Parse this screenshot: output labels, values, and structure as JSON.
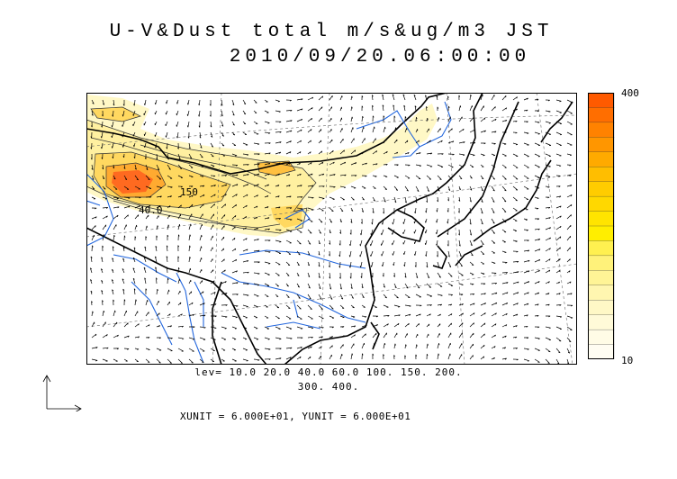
{
  "title": {
    "line1": "U-V&Dust total m/s&ug/m3 JST",
    "line2": "2010/09/20.06:00:00"
  },
  "contour_labels": [
    "150",
    "40.0"
  ],
  "colorbar": {
    "max_label": "400",
    "min_label": "10",
    "colors": [
      "#ff5a00",
      "#ff6e00",
      "#ff8200",
      "#ff9600",
      "#ffaa00",
      "#ffbe00",
      "#ffcc00",
      "#ffd800",
      "#ffe400",
      "#ffee00",
      "#fff050",
      "#fff27a",
      "#fff496",
      "#fff6b0",
      "#fff8c6",
      "#fffad8",
      "#fffce6",
      "#fffdf2"
    ],
    "levels_line1": "lev= 10.0 20.0 40.0 60.0 100. 150. 200.",
    "levels_line2": "300. 400."
  },
  "units_text": "XUNIT = 6.000E+01, YUNIT = 6.000E+01"
}
